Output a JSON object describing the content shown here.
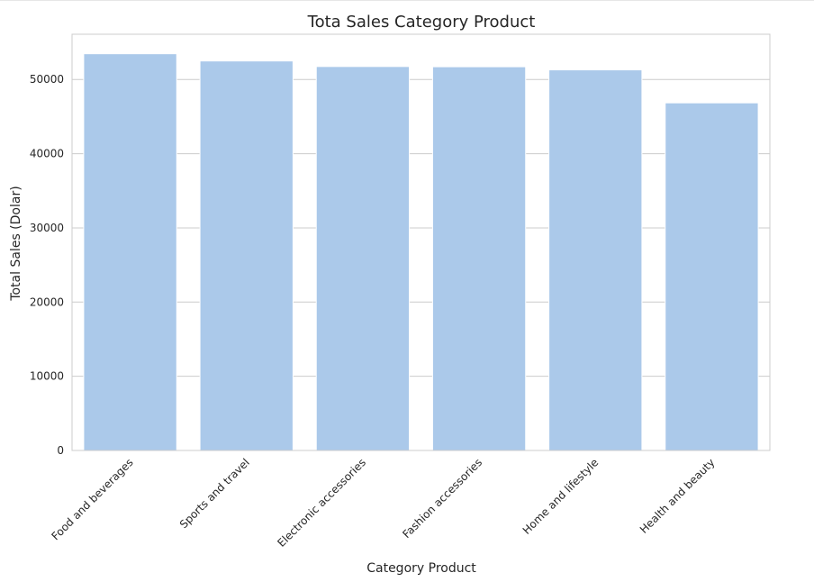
{
  "chart_data": {
    "type": "bar",
    "title": "Tota Sales Category Product",
    "xlabel": "Category Product",
    "ylabel": "Total Sales (Dolar)",
    "categories": [
      "Food and beverages",
      "Sports and travel",
      "Electronic accessories",
      "Fashion accessories",
      "Home and lifestyle",
      "Health and beauty"
    ],
    "values": [
      53471,
      52497,
      51750,
      51719,
      51297,
      46851
    ],
    "ylim": [
      0,
      56100
    ],
    "yticks": [
      0,
      10000,
      20000,
      30000,
      40000,
      50000
    ],
    "ytick_labels": [
      "0",
      "10000",
      "20000",
      "30000",
      "40000",
      "50000"
    ],
    "grid": "y",
    "bar_color": "#abc9ea",
    "x_tick_rotation_deg": 45
  }
}
